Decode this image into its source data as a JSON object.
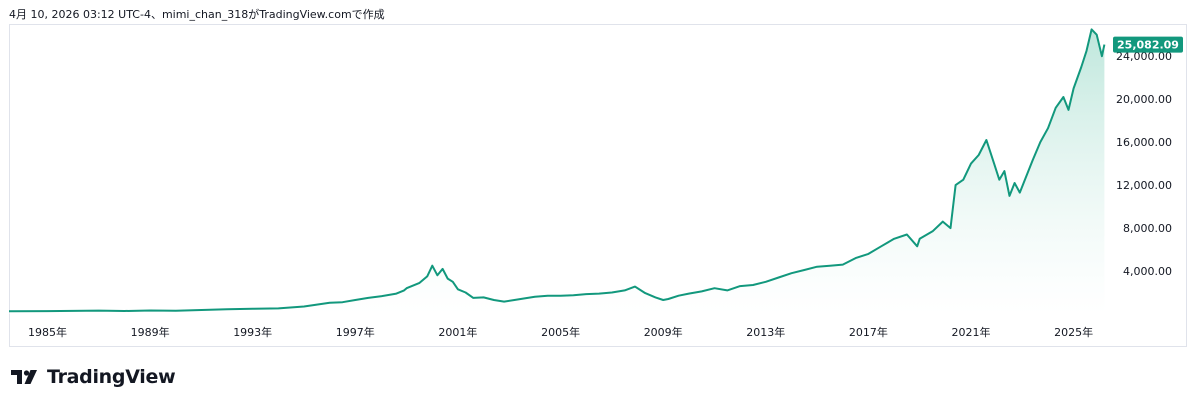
{
  "header": {
    "attribution": "4月 10, 2026 03:12 UTC-4、mimi_chan_318がTradingView.comで作成"
  },
  "brand": {
    "name": "TradingView",
    "logo_icon": "tradingview-logo-icon"
  },
  "colors": {
    "line": "#12987d",
    "fill_top": "#b7e4d8",
    "fill_bottom": "#ffffff",
    "last_price_badge": "#12987d",
    "text": "#131722",
    "border": "#e0e3eb"
  },
  "chart_data": {
    "type": "area",
    "title": "",
    "xlabel": "",
    "ylabel": "",
    "x_ticks": [
      "1985年",
      "1989年",
      "1993年",
      "1997年",
      "2001年",
      "2005年",
      "2009年",
      "2013年",
      "2017年",
      "2021年",
      "2025年"
    ],
    "y_ticks": [
      "4,000.00",
      "8,000.00",
      "12,000.00",
      "16,000.00",
      "20,000.00",
      "24,000.00"
    ],
    "y_tick_values": [
      4000,
      8000,
      12000,
      16000,
      20000,
      24000
    ],
    "ylim": [
      0,
      27000
    ],
    "xlim": [
      1983.5,
      2026.3
    ],
    "grid": false,
    "last_value_label": "25,082.09",
    "series": [
      {
        "x": [
          1983.5,
          1985.0,
          1987.0,
          1988.0,
          1989.0,
          1990.0,
          1992.0,
          1993.0,
          1994.0,
          1995.0,
          1996.0,
          1996.5,
          1997.0,
          1997.5,
          1998.0,
          1998.6,
          1998.9,
          1999.0,
          1999.5,
          1999.8,
          2000.0,
          2000.2,
          2000.4,
          2000.6,
          2000.8,
          2001.0,
          2001.3,
          2001.6,
          2002.0,
          2002.4,
          2002.8,
          2003.2,
          2003.6,
          2004.0,
          2004.5,
          2005.0,
          2005.5,
          2006.0,
          2006.5,
          2007.0,
          2007.5,
          2007.9,
          2008.3,
          2008.7,
          2009.0,
          2009.2,
          2009.6,
          2010.0,
          2010.5,
          2011.0,
          2011.5,
          2012.0,
          2012.5,
          2013.0,
          2013.5,
          2014.0,
          2014.5,
          2015.0,
          2015.5,
          2016.0,
          2016.5,
          2017.0,
          2017.5,
          2018.0,
          2018.5,
          2018.9,
          2019.0,
          2019.5,
          2019.9,
          2020.2,
          2020.4,
          2020.7,
          2021.0,
          2021.3,
          2021.6,
          2021.9,
          2022.1,
          2022.3,
          2022.5,
          2022.7,
          2022.9,
          2023.1,
          2023.4,
          2023.7,
          2024.0,
          2024.3,
          2024.6,
          2024.8,
          2025.0,
          2025.3,
          2025.5,
          2025.7,
          2025.9,
          2026.1,
          2026.2
        ],
        "y": [
          250,
          270,
          320,
          280,
          330,
          300,
          450,
          480,
          520,
          700,
          1050,
          1100,
          1300,
          1500,
          1650,
          1900,
          2200,
          2400,
          2900,
          3500,
          4500,
          3600,
          4200,
          3300,
          3000,
          2300,
          2000,
          1500,
          1550,
          1300,
          1150,
          1300,
          1450,
          1600,
          1700,
          1700,
          1750,
          1850,
          1900,
          2000,
          2200,
          2550,
          1950,
          1550,
          1300,
          1400,
          1700,
          1900,
          2100,
          2400,
          2200,
          2600,
          2700,
          3000,
          3400,
          3800,
          4100,
          4400,
          4500,
          4600,
          5200,
          5600,
          6300,
          7000,
          7400,
          6300,
          7000,
          7700,
          8600,
          8000,
          12000,
          12500,
          14000,
          14800,
          16200,
          14000,
          12500,
          13300,
          11000,
          12200,
          11300,
          12500,
          14300,
          16000,
          17300,
          19200,
          20200,
          19000,
          21000,
          23000,
          24500,
          26500,
          26000,
          24000,
          25082.09
        ]
      }
    ]
  }
}
